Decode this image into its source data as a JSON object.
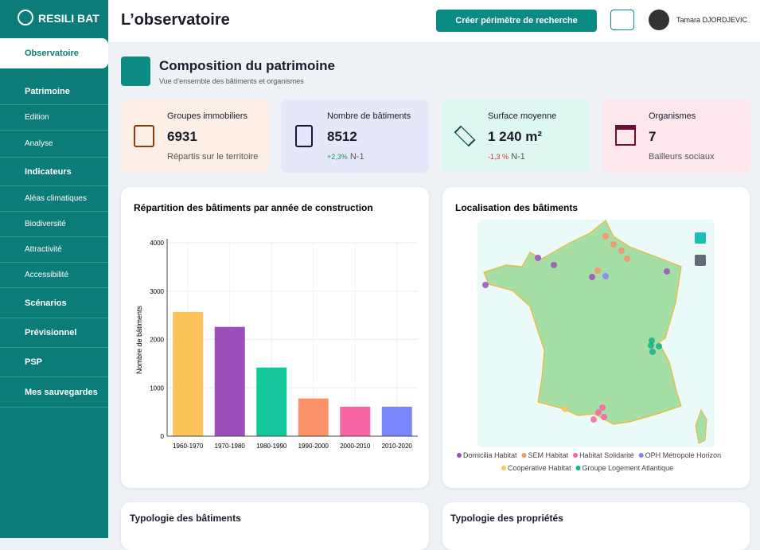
{
  "brand": "RESILI BAT",
  "sidebar": {
    "items": [
      {
        "label": "Observatoire"
      },
      {
        "label": "Patrimoine",
        "children": [
          "Edition",
          "Analyse"
        ]
      },
      {
        "label": "Indicateurs",
        "children": [
          "Aléas climatiques",
          "Biodiversité",
          "Attractivité",
          "Accessibilité"
        ]
      },
      {
        "label": "Scénarios"
      },
      {
        "label": "Prévisionnel"
      },
      {
        "label": "PSP"
      },
      {
        "label": "Mes sauvegardes"
      }
    ]
  },
  "header": {
    "title": "L’observatoire",
    "button": "Créer périmètre de recherche",
    "user": "Tamara DJORDJEVIC"
  },
  "section": {
    "title": "Composition du patrimoine",
    "subtitle": "Vue d’ensemble des bâtiments et organismes"
  },
  "kpis": [
    {
      "label": "Groupes immobiliers",
      "value": "6931",
      "note": "Répartis sur le territoire"
    },
    {
      "label": "Nombre de bâtiments",
      "value": "8512",
      "trend": "+2,3%",
      "note": "N-1"
    },
    {
      "label": "Surface moyenne",
      "value": "1 240 m²",
      "trend": "-1,3 %",
      "note": "N-1"
    },
    {
      "label": "Organismes",
      "value": "7",
      "note": "Bailleurs sociaux"
    }
  ],
  "chart_data": {
    "type": "bar",
    "title": "Répartition des bâtiments par année de construction",
    "y_label": "Nombre de bâtiments",
    "categories": [
      "1960-1970",
      "1970-1980",
      "1980-1990",
      "1990-2000",
      "2000-2010",
      "2010-2020"
    ],
    "values": [
      2570,
      2260,
      1420,
      780,
      610,
      610
    ],
    "colors": [
      "#fdc45c",
      "#9b4fba",
      "#14c79a",
      "#fd916a",
      "#f765a3",
      "#7b86fb"
    ],
    "ylim": [
      0,
      4000
    ],
    "yticks": [
      0,
      1000,
      2000,
      3000,
      4000
    ],
    "grid": true
  },
  "map": {
    "title": "Localisation des bâtiments",
    "legend": [
      {
        "name": "Domicilia Habitat",
        "color": "#9b4fba"
      },
      {
        "name": "SEM Habitat",
        "color": "#fd916a"
      },
      {
        "name": "Habitat Solidarité",
        "color": "#f765a3"
      },
      {
        "name": "OPH Métropole Horizon",
        "color": "#7b86fb"
      },
      {
        "name": "Coopérative Habitat",
        "color": "#fdc45c"
      },
      {
        "name": "Groupe Logement Atlantique",
        "color": "#14b08a"
      }
    ]
  },
  "bottom": [
    "Typologie des bâtiments",
    "Typologie des propriétés"
  ]
}
